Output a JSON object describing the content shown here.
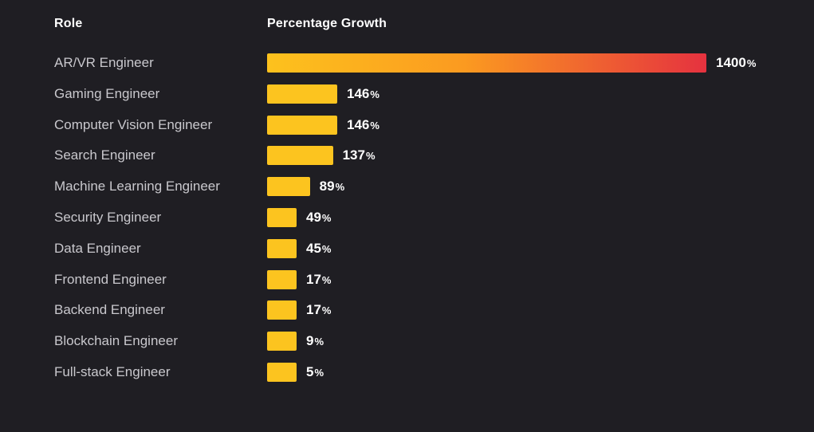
{
  "chart_data": {
    "type": "bar",
    "orientation": "horizontal",
    "title": "",
    "headers": {
      "role": "Role",
      "growth": "Percentage Growth"
    },
    "unit": "%",
    "categories": [
      "AR/VR Engineer",
      "Gaming Engineer",
      "Computer Vision Engineer",
      "Search Engineer",
      "Machine Learning Engineer",
      "Security Engineer",
      "Data Engineer",
      "Frontend Engineer",
      "Backend Engineer",
      "Blockchain Engineer",
      "Full-stack Engineer"
    ],
    "values": [
      1400,
      146,
      146,
      137,
      89,
      49,
      45,
      17,
      17,
      9,
      5
    ],
    "value_labels": [
      "1400",
      "146",
      "146",
      "137",
      "89",
      "49",
      "45",
      "17",
      "17",
      "9",
      "5"
    ],
    "xlim": [
      0,
      1400
    ],
    "grid": false,
    "legend": "none"
  },
  "colors": {
    "background": "#1f1e23",
    "bar": "#fcc41f",
    "highlight_gradient_start": "#fdc21d",
    "highlight_gradient_end": "#e5323f",
    "label_text": "#c9c8cd",
    "value_text": "#ffffff"
  }
}
